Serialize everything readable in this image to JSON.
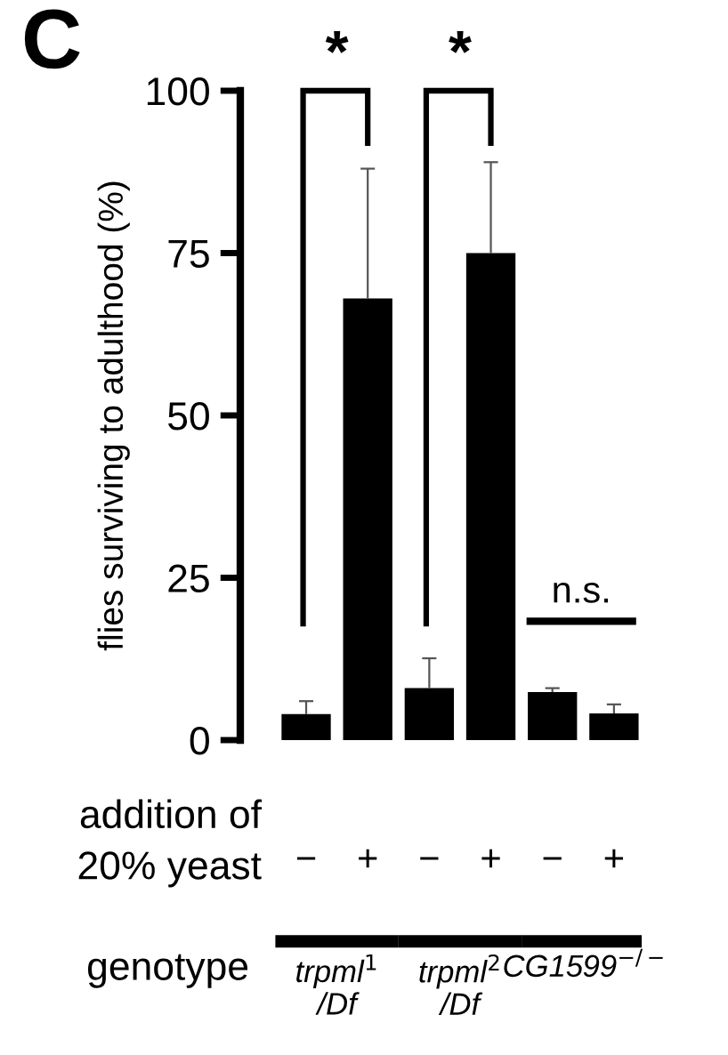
{
  "chart_data": {
    "type": "bar",
    "ylabel": "flies surviving to adulthood (%)",
    "categories": [
      "−",
      "+",
      "−",
      "+",
      "−",
      "+"
    ],
    "values": [
      4,
      68,
      8,
      75,
      7.4,
      4.1
    ],
    "errors": [
      [
        4,
        6
      ],
      [
        68,
        88
      ],
      [
        8,
        12.6
      ],
      [
        75,
        89
      ],
      [
        7.4,
        8
      ],
      [
        4.1,
        5.5
      ]
    ],
    "color": "#000000",
    "ylim": [
      0,
      100
    ],
    "yticks": [
      0,
      25,
      50,
      75,
      100
    ],
    "grid": false,
    "legend": false,
    "annotations": [
      "C",
      "*",
      "*",
      "n.s.",
      "addition of\n20% yeast",
      "genotype",
      "trpml$^{1}$\n/Df",
      "trpml$^{2}$\n/Df",
      "CG1599$^{−/−}$"
    ]
  }
}
